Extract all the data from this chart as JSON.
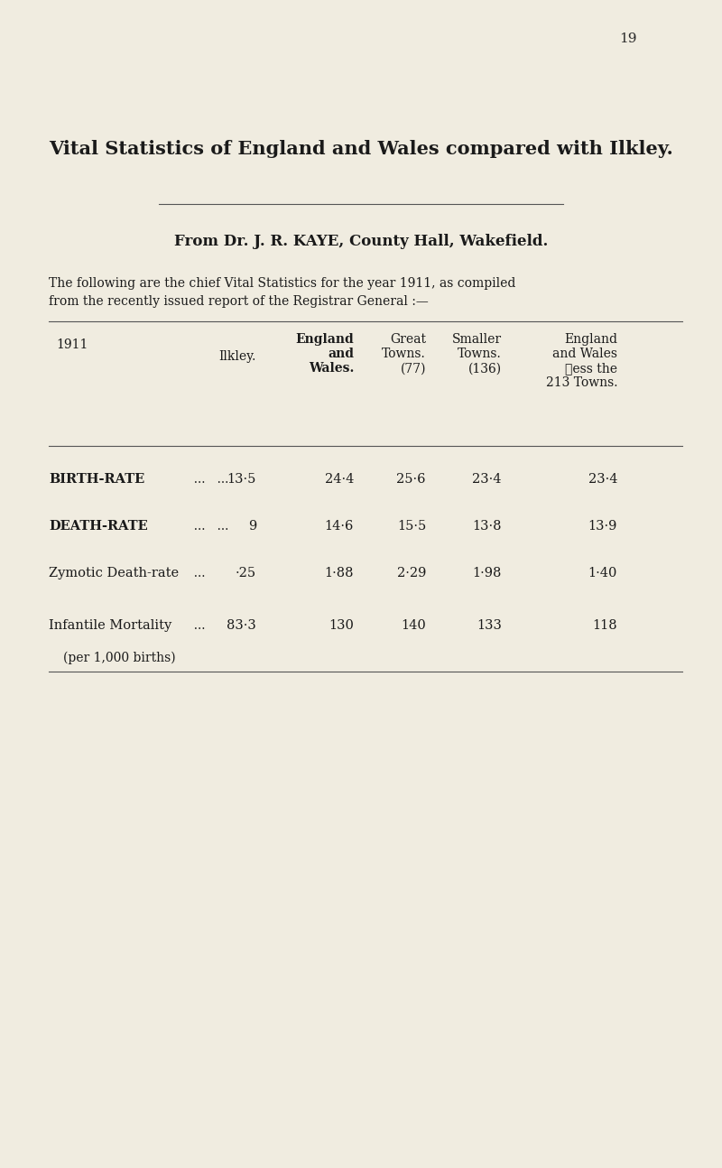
{
  "page_number": "19",
  "bg_color": "#f0ece0",
  "title": "Vital Statistics of England and Wales compared with Ilkley.",
  "subtitle": "From Dr. J. R. KAYE, County Hall, Wakefield.",
  "body_text_line1": "The following are the chief Vital Statistics for the year 1911, as compiled",
  "body_text_line2": "from the recently issued report of the Registrar General :—",
  "col_headers": [
    "1911",
    "Ilkley.",
    "England\nand\nWales.",
    "Great\nTowns.\n(77)",
    "Smaller\nTowns.\n(136)",
    "England\nand Wales\nless the\n213 Towns."
  ],
  "col_header_bold": [
    false,
    false,
    true,
    false,
    false,
    false
  ],
  "rows": [
    {
      "label": "BIRTH-RATE",
      "label_suffix": "  ...   ...",
      "bold": true,
      "values": [
        "13·5",
        "24·4",
        "25·6",
        "23·4",
        "23·4"
      ]
    },
    {
      "label": "DEATH-RATE",
      "label_suffix": "  ...   ...",
      "bold": true,
      "values": [
        "9",
        "14·6",
        "15·5",
        "13·8",
        "13·9"
      ]
    },
    {
      "label": "Zymotic Death-rate",
      "label_suffix": "  ...",
      "bold": false,
      "values": [
        "·25",
        "1·88",
        "2·29",
        "1·98",
        "1·40"
      ]
    },
    {
      "label": "Infantile Mortality",
      "label_suffix": "  ...",
      "label2": "(per 1,000 births)",
      "bold": false,
      "values": [
        "83·3",
        "130",
        "140",
        "133",
        "118"
      ]
    }
  ]
}
